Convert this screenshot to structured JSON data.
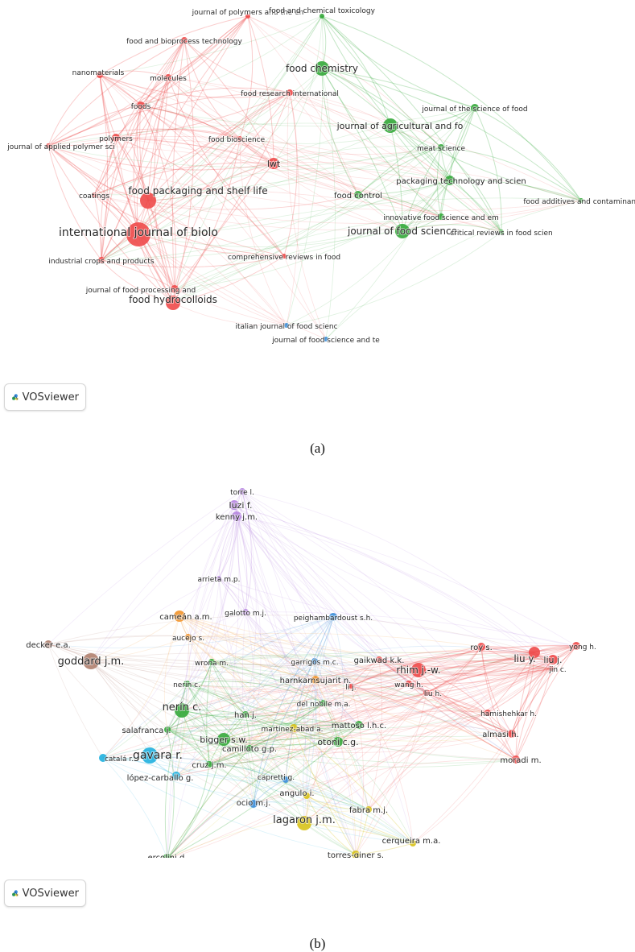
{
  "colors": {
    "red": "#ee4a4a",
    "green": "#34a93a",
    "blue": "#3b8ed9",
    "purple": "#b685e0",
    "orange": "#f2942a",
    "yellow": "#d8c21a",
    "cyan": "#1fb0df",
    "brown": "#b07f6e"
  },
  "vosviewer_label": "VOSviewer",
  "panel_a": {
    "caption": "(a)",
    "nodes": [
      {
        "label": "journal of polymers and the en",
        "cluster": "red"
      },
      {
        "label": "food and chemical toxicology",
        "cluster": "green"
      },
      {
        "label": "food and bioprocess technology",
        "cluster": "red"
      },
      {
        "label": "food chemistry",
        "cluster": "green"
      },
      {
        "label": "nanomaterials",
        "cluster": "red"
      },
      {
        "label": "molecules",
        "cluster": "red"
      },
      {
        "label": "food research international",
        "cluster": "red"
      },
      {
        "label": "journal of the science of food",
        "cluster": "green"
      },
      {
        "label": "foods",
        "cluster": "red"
      },
      {
        "label": "journal of agricultural and fo",
        "cluster": "green"
      },
      {
        "label": "polymers",
        "cluster": "red"
      },
      {
        "label": "food bioscience",
        "cluster": "red"
      },
      {
        "label": "meat science",
        "cluster": "green"
      },
      {
        "label": "journal of applied polymer sci",
        "cluster": "red"
      },
      {
        "label": "lwt",
        "cluster": "red"
      },
      {
        "label": "packaging technology and scien",
        "cluster": "green"
      },
      {
        "label": "coatings",
        "cluster": "red"
      },
      {
        "label": "food packaging and shelf life",
        "cluster": "red"
      },
      {
        "label": "food control",
        "cluster": "green"
      },
      {
        "label": "food additives and contaminant",
        "cluster": "green"
      },
      {
        "label": "innovative food science and em",
        "cluster": "green"
      },
      {
        "label": "journal of food science",
        "cluster": "green"
      },
      {
        "label": "critical reviews in food scien",
        "cluster": "green"
      },
      {
        "label": "international journal of biolo",
        "cluster": "red"
      },
      {
        "label": "industrial crops and products",
        "cluster": "red"
      },
      {
        "label": "comprehensive reviews in food",
        "cluster": "red"
      },
      {
        "label": "journal of food processing and",
        "cluster": "red"
      },
      {
        "label": "food hydrocolloids",
        "cluster": "red"
      },
      {
        "label": "italian journal of food scienc",
        "cluster": "blue"
      },
      {
        "label": "journal of food science and te",
        "cluster": "blue"
      }
    ]
  },
  "panel_b": {
    "caption": "(b)",
    "nodes": [
      {
        "label": "torre l.",
        "cluster": "purple"
      },
      {
        "label": "luzi f.",
        "cluster": "purple"
      },
      {
        "label": "kenny j.m.",
        "cluster": "purple"
      },
      {
        "label": "arrieta m.p.",
        "cluster": "purple"
      },
      {
        "label": "cameán a.m.",
        "cluster": "orange"
      },
      {
        "label": "galotto m.j.",
        "cluster": "purple"
      },
      {
        "label": "peighambardoust s.h.",
        "cluster": "blue"
      },
      {
        "label": "decker e.a.",
        "cluster": "brown"
      },
      {
        "label": "aucejo s.",
        "cluster": "orange"
      },
      {
        "label": "roy s.",
        "cluster": "red"
      },
      {
        "label": "yong h.",
        "cluster": "red"
      },
      {
        "label": "goddard j.m.",
        "cluster": "brown"
      },
      {
        "label": "wrona m.",
        "cluster": "green"
      },
      {
        "label": "garrigós m.c.",
        "cluster": "blue"
      },
      {
        "label": "gaikwad k.k.",
        "cluster": "red"
      },
      {
        "label": "rhim j.-w.",
        "cluster": "red"
      },
      {
        "label": "liu y.",
        "cluster": "red"
      },
      {
        "label": "liu j.",
        "cluster": "red"
      },
      {
        "label": "jin c.",
        "cluster": "red"
      },
      {
        "label": "nerin c.",
        "cluster": "green"
      },
      {
        "label": "li j.",
        "cluster": "red"
      },
      {
        "label": "wang h.",
        "cluster": "red"
      },
      {
        "label": "harnkarnsujarit n.",
        "cluster": "orange"
      },
      {
        "label": "liu h.",
        "cluster": "red"
      },
      {
        "label": "nerín c.",
        "cluster": "green"
      },
      {
        "label": "del nobile m.a.",
        "cluster": "green"
      },
      {
        "label": "han j.",
        "cluster": "green"
      },
      {
        "label": "hamishehkar h.",
        "cluster": "red"
      },
      {
        "label": "mattoso l.h.c.",
        "cluster": "green"
      },
      {
        "label": "salafranca j.",
        "cluster": "green"
      },
      {
        "label": "martinez-abad a.",
        "cluster": "yellow"
      },
      {
        "label": "almasi h.",
        "cluster": "red"
      },
      {
        "label": "bigger s.w.",
        "cluster": "green"
      },
      {
        "label": "otoni c.g.",
        "cluster": "green"
      },
      {
        "label": "gavara r.",
        "cluster": "cyan"
      },
      {
        "label": "camilloto g.p.",
        "cluster": "green"
      },
      {
        "label": "catalá r.",
        "cluster": "cyan"
      },
      {
        "label": "cruz j.m.",
        "cluster": "green"
      },
      {
        "label": "moradi m.",
        "cluster": "red"
      },
      {
        "label": "capretti g.",
        "cluster": "blue"
      },
      {
        "label": "lópez-carballo g.",
        "cluster": "cyan"
      },
      {
        "label": "angulo i.",
        "cluster": "yellow"
      },
      {
        "label": "ocio m.j.",
        "cluster": "blue"
      },
      {
        "label": "fabra m.j.",
        "cluster": "yellow"
      },
      {
        "label": "lagaron j.m.",
        "cluster": "yellow"
      },
      {
        "label": "cerqueira m.a.",
        "cluster": "yellow"
      },
      {
        "label": "ercolini d.",
        "cluster": "green"
      },
      {
        "label": "torres-giner s.",
        "cluster": "yellow"
      }
    ]
  }
}
